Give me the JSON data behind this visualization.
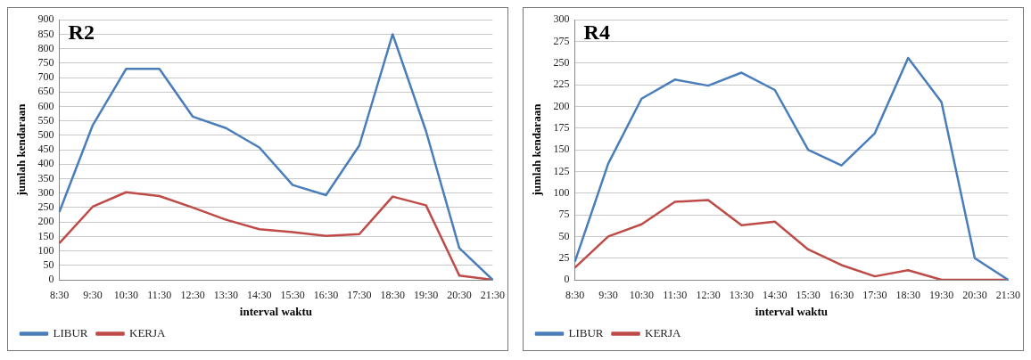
{
  "chart_data": [
    {
      "type": "line",
      "title": "R2",
      "xlabel": "interval waktu",
      "ylabel": "jumlah kendaraan",
      "categories": [
        "8:30",
        "9:30",
        "10:30",
        "11:30",
        "12:30",
        "13:30",
        "14:30",
        "15:30",
        "16:30",
        "17:30",
        "18:30",
        "19:30",
        "20:30",
        "21:30"
      ],
      "series": [
        {
          "name": "LIBUR",
          "color": "#4a7ebb",
          "values": [
            235,
            535,
            730,
            730,
            565,
            525,
            458,
            328,
            293,
            465,
            850,
            515,
            110,
            0
          ]
        },
        {
          "name": "KERJA",
          "color": "#be4b48",
          "values": [
            127,
            253,
            303,
            290,
            250,
            208,
            175,
            165,
            152,
            158,
            288,
            258,
            15,
            0
          ]
        }
      ],
      "ylim": [
        0,
        900
      ],
      "yticks": [
        0,
        50,
        100,
        150,
        200,
        250,
        300,
        350,
        400,
        450,
        500,
        550,
        600,
        650,
        700,
        750,
        800,
        850,
        900
      ],
      "grid": "y",
      "legend": "bottom left",
      "marker": "none",
      "line_style": "solid"
    },
    {
      "type": "line",
      "title": "R4",
      "xlabel": "interval waktu",
      "ylabel": "jumlah kendaraan",
      "categories": [
        "8:30",
        "9:30",
        "10:30",
        "11:30",
        "12:30",
        "13:30",
        "14:30",
        "15:30",
        "16:30",
        "17:30",
        "18:30",
        "19:30",
        "20:30",
        "21:30"
      ],
      "series": [
        {
          "name": "LIBUR",
          "color": "#4a7ebb",
          "values": [
            21,
            134,
            209,
            231,
            224,
            239,
            219,
            150,
            132,
            169,
            256,
            205,
            25,
            0
          ]
        },
        {
          "name": "KERJA",
          "color": "#be4b48",
          "values": [
            14,
            50,
            64,
            90,
            92,
            63,
            67,
            35,
            17,
            4,
            11,
            0,
            0,
            0
          ]
        }
      ],
      "ylim": [
        0,
        300
      ],
      "yticks": [
        0,
        25,
        50,
        75,
        100,
        125,
        150,
        175,
        200,
        225,
        250,
        275,
        300
      ],
      "grid": "y",
      "legend": "bottom left",
      "marker": "none",
      "line_style": "solid"
    }
  ]
}
